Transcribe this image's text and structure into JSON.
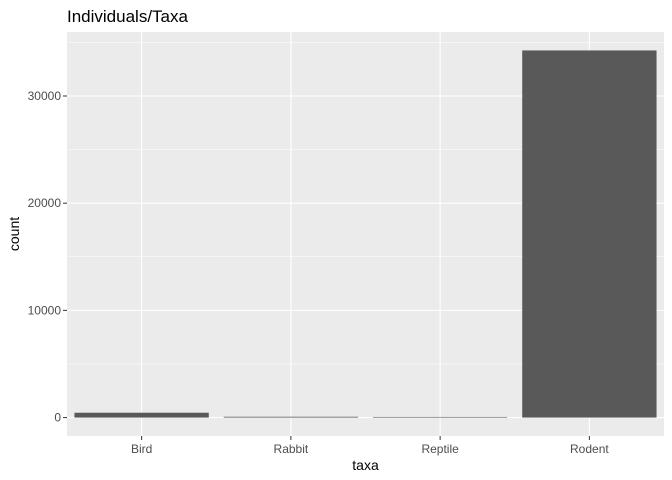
{
  "chart_data": {
    "type": "bar",
    "title": "Individuals/Taxa",
    "xlabel": "taxa",
    "ylabel": "count",
    "categories": [
      "Bird",
      "Rabbit",
      "Reptile",
      "Rodent"
    ],
    "values": [
      450,
      75,
      14,
      34250
    ],
    "ylim": [
      -1720,
      35970
    ],
    "yticks": [
      0,
      10000,
      20000,
      30000
    ],
    "ytick_labels": [
      "0",
      "10000",
      "20000",
      "30000"
    ],
    "grid": true,
    "legend": "none",
    "colors": {
      "panel": "#ebebeb",
      "grid_major": "#ffffff",
      "bar": "#595959",
      "tick_text": "#4d4d4d",
      "tick_mark": "#333333"
    }
  }
}
